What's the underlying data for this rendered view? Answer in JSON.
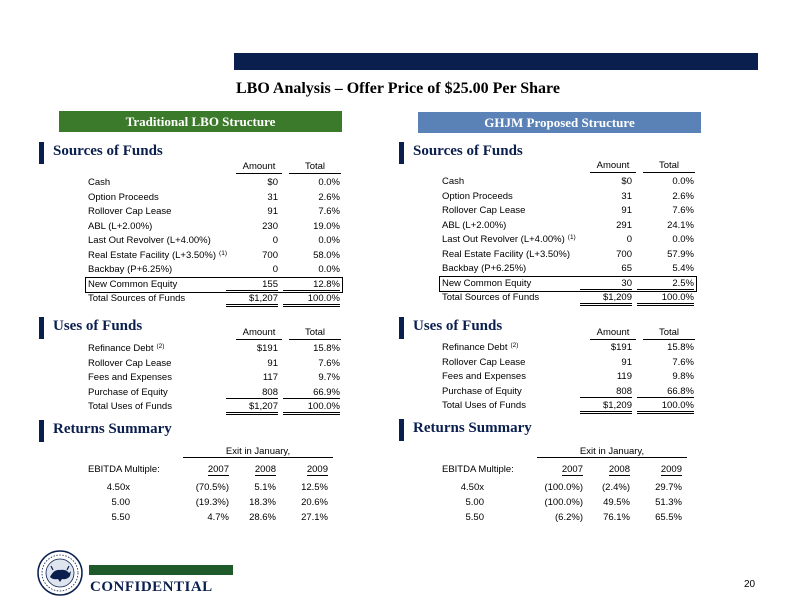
{
  "title": "LBO Analysis – Offer Price of $25.00 Per Share",
  "left_label": "Traditional LBO Structure",
  "right_label": "GHJM Proposed Structure",
  "sources_title": "Sources of Funds",
  "uses_title": "Uses of Funds",
  "returns_title": "Returns Summary",
  "col_amount": "Amount",
  "col_total": "Total",
  "left": {
    "sources": [
      {
        "label": "Cash",
        "amount": "$0",
        "total": "0.0%"
      },
      {
        "label": "Option Proceeds",
        "amount": "31",
        "total": "2.6%"
      },
      {
        "label": "Rollover Cap Lease",
        "amount": "91",
        "total": "7.6%"
      },
      {
        "label": "ABL (L+2.00%)",
        "amount": "230",
        "total": "19.0%"
      },
      {
        "label": "Last Out Revolver (L+4.00%)",
        "amount": "0",
        "total": "0.0%"
      },
      {
        "label": "Real Estate Facility (L+3.50%)",
        "sup": "(1)",
        "amount": "700",
        "total": "58.0%"
      },
      {
        "label": "Backbay (P+6.25%)",
        "amount": "0",
        "total": "0.0%"
      },
      {
        "label": "New Common Equity",
        "amount": "155",
        "total": "12.8%"
      },
      {
        "label": "Total Sources of Funds",
        "amount": "$1,207",
        "total": "100.0%"
      }
    ],
    "uses": [
      {
        "label": "Refinance Debt",
        "sup": "(2)",
        "amount": "$191",
        "total": "15.8%"
      },
      {
        "label": "Rollover Cap Lease",
        "amount": "91",
        "total": "7.6%"
      },
      {
        "label": "Fees and Expenses",
        "amount": "117",
        "total": "9.7%"
      },
      {
        "label": "Purchase of Equity",
        "amount": "808",
        "total": "66.9%"
      },
      {
        "label": "Total Uses of Funds",
        "amount": "$1,207",
        "total": "100.0%"
      }
    ],
    "returns": {
      "exit_label": "Exit in January,",
      "multiple_label": "EBITDA Multiple:",
      "years": [
        "2007",
        "2008",
        "2009"
      ],
      "rows": [
        {
          "multiple": "4.50x",
          "values": [
            "(70.5%)",
            "5.1%",
            "12.5%"
          ]
        },
        {
          "multiple": "5.00",
          "values": [
            "(19.3%)",
            "18.3%",
            "20.6%"
          ]
        },
        {
          "multiple": "5.50",
          "values": [
            "4.7%",
            "28.6%",
            "27.1%"
          ]
        }
      ]
    }
  },
  "right": {
    "sources": [
      {
        "label": "Cash",
        "amount": "$0",
        "total": "0.0%"
      },
      {
        "label": "Option Proceeds",
        "amount": "31",
        "total": "2.6%"
      },
      {
        "label": "Rollover Cap Lease",
        "amount": "91",
        "total": "7.6%"
      },
      {
        "label": "ABL (L+2.00%)",
        "amount": "291",
        "total": "24.1%"
      },
      {
        "label": "Last Out Revolver (L+4.00%)",
        "sup": "(1)",
        "amount": "0",
        "total": "0.0%"
      },
      {
        "label": "Real Estate Facility (L+3.50%)",
        "amount": "700",
        "total": "57.9%"
      },
      {
        "label": "Backbay (P+6.25%)",
        "amount": "65",
        "total": "5.4%"
      },
      {
        "label": "New Common Equity",
        "amount": "30",
        "total": "2.5%"
      },
      {
        "label": "Total Sources of Funds",
        "amount": "$1,209",
        "total": "100.0%"
      }
    ],
    "uses": [
      {
        "label": "Refinance Debt",
        "sup": "(2)",
        "amount": "$191",
        "total": "15.8%"
      },
      {
        "label": "Rollover Cap Lease",
        "amount": "91",
        "total": "7.6%"
      },
      {
        "label": "Fees and Expenses",
        "amount": "119",
        "total": "9.8%"
      },
      {
        "label": "Purchase of Equity",
        "amount": "808",
        "total": "66.8%"
      },
      {
        "label": "Total Uses of Funds",
        "amount": "$1,209",
        "total": "100.0%"
      }
    ],
    "returns": {
      "exit_label": "Exit in January,",
      "multiple_label": "EBITDA Multiple:",
      "years": [
        "2007",
        "2008",
        "2009"
      ],
      "rows": [
        {
          "multiple": "4.50x",
          "values": [
            "(100.0%)",
            "(2.4%)",
            "29.7%"
          ]
        },
        {
          "multiple": "5.00",
          "values": [
            "(100.0%)",
            "49.5%",
            "51.3%"
          ]
        },
        {
          "multiple": "5.50",
          "values": [
            "(6.2%)",
            "76.1%",
            "65.5%"
          ]
        }
      ]
    }
  },
  "footer": {
    "confidential": "CONFIDENTIAL",
    "page": "20",
    "logo_icon": "bull-seal-icon"
  },
  "colors": {
    "navy": "#0b1f4f",
    "green": "#3b7a2a",
    "blue": "#5b82b6"
  }
}
